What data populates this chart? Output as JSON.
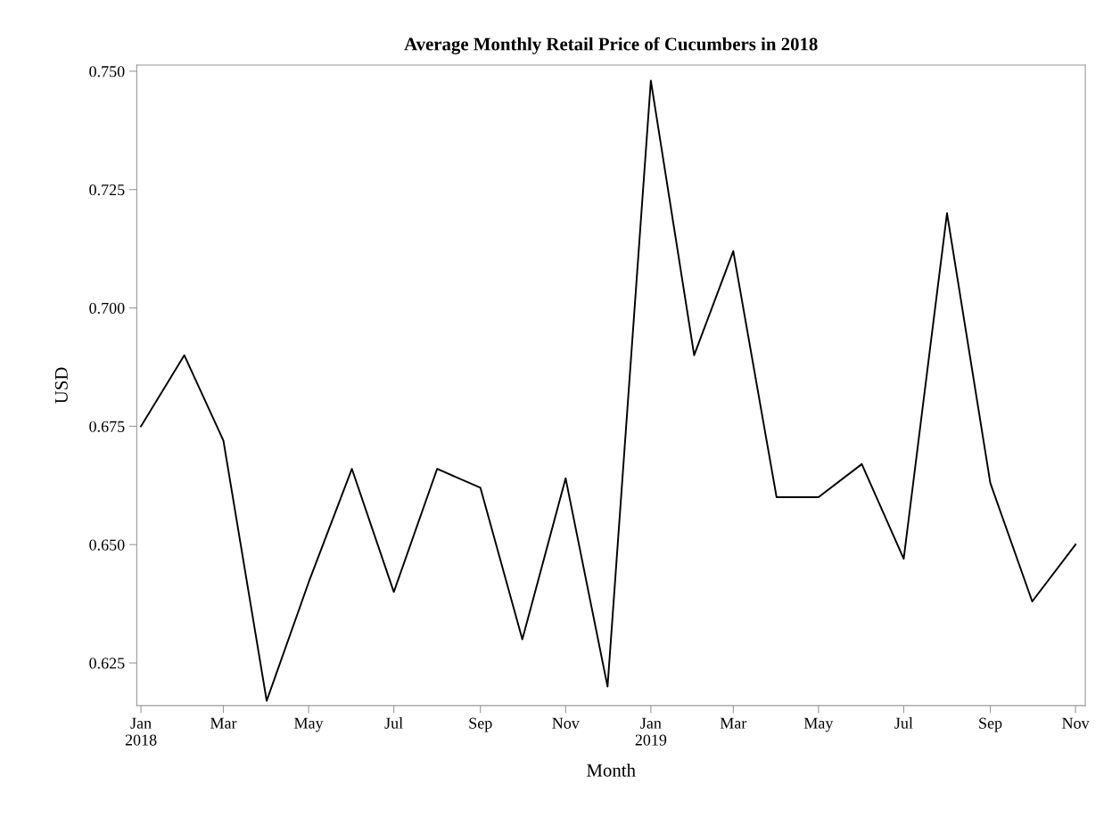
{
  "chart_data": {
    "type": "line",
    "title": "Average Monthly Retail Price of Cucumbers in 2018",
    "xlabel": "Month",
    "ylabel": "USD",
    "x": [
      "2018-01",
      "2018-02",
      "2018-03",
      "2018-04",
      "2018-05",
      "2018-06",
      "2018-07",
      "2018-08",
      "2018-09",
      "2018-10",
      "2018-11",
      "2018-12",
      "2019-01",
      "2019-02",
      "2019-03",
      "2019-04",
      "2019-05",
      "2019-06",
      "2019-07",
      "2019-08",
      "2019-09",
      "2019-10",
      "2019-11"
    ],
    "series": [
      {
        "color": "#000000",
        "values": [
          0.675,
          0.69,
          0.672,
          0.617,
          0.642,
          0.666,
          0.64,
          0.666,
          0.662,
          0.63,
          0.664,
          0.62,
          0.748,
          0.69,
          0.712,
          0.66,
          0.66,
          0.667,
          0.647,
          0.72,
          0.663,
          0.638,
          0.65
        ]
      }
    ],
    "xlim": [
      "2017-12-29",
      "2019-11-08"
    ],
    "xticks": [
      {
        "value": "2018-01",
        "label": "Jan\n2018"
      },
      {
        "value": "2018-03",
        "label": "Mar"
      },
      {
        "value": "2018-05",
        "label": "May"
      },
      {
        "value": "2018-07",
        "label": "Jul"
      },
      {
        "value": "2018-09",
        "label": "Sep"
      },
      {
        "value": "2018-11",
        "label": "Nov"
      },
      {
        "value": "2019-01",
        "label": "Jan\n2019"
      },
      {
        "value": "2019-03",
        "label": "Mar"
      },
      {
        "value": "2019-05",
        "label": "May"
      },
      {
        "value": "2019-07",
        "label": "Jul"
      },
      {
        "value": "2019-09",
        "label": "Sep"
      },
      {
        "value": "2019-11",
        "label": "Nov"
      }
    ],
    "ylim": [
      0.616,
      0.7513
    ],
    "yticks": [
      {
        "value": 0.625,
        "label": "0.625"
      },
      {
        "value": 0.65,
        "label": "0.650"
      },
      {
        "value": 0.675,
        "label": "0.675"
      },
      {
        "value": 0.7,
        "label": "0.700"
      },
      {
        "value": 0.725,
        "label": "0.725"
      },
      {
        "value": 0.75,
        "label": "0.750"
      }
    ],
    "grid": false,
    "legend": false,
    "marker": "none",
    "line_style": "solid"
  }
}
